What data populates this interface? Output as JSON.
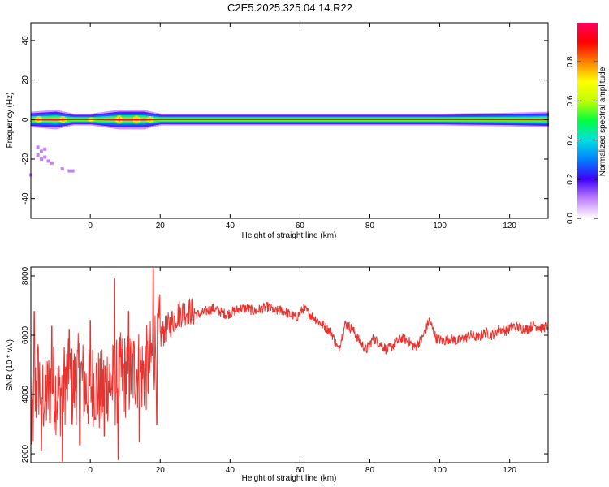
{
  "page": {
    "title": "C2E5.2025.325.04.14.R22"
  },
  "chart_data": [
    {
      "type": "heatmap",
      "xlabel": "Height of straight line (km)",
      "ylabel": "Frequency (Hz)",
      "xlim": [
        -17,
        131
      ],
      "ylim": [
        -50,
        49
      ],
      "x_ticks": [
        "0",
        "20",
        "40",
        "60",
        "80",
        "100",
        "120"
      ],
      "y_ticks": [
        "-40",
        "-20",
        "0",
        "20",
        "40"
      ],
      "x_tick_values": [
        0,
        20,
        40,
        60,
        80,
        100,
        120
      ],
      "y_tick_values": [
        -40,
        -20,
        0,
        20,
        40
      ],
      "grid": false,
      "band_center_hz": 0,
      "band_halfwidth_hz": [
        [
          -17,
          4
        ],
        [
          -10,
          5
        ],
        [
          -5,
          3
        ],
        [
          0,
          3
        ],
        [
          8,
          5
        ],
        [
          15,
          5
        ],
        [
          20,
          3
        ],
        [
          40,
          3
        ],
        [
          60,
          3
        ],
        [
          80,
          3
        ],
        [
          100,
          3
        ],
        [
          120,
          3.5
        ],
        [
          131,
          4
        ]
      ],
      "peaks": [
        {
          "x": -15,
          "value": 0.55
        },
        {
          "x": -8,
          "value": 0.6
        },
        {
          "x": 0,
          "value": 0.45
        },
        {
          "x": 8,
          "value": 0.6
        },
        {
          "x": 13,
          "value": 0.55
        },
        {
          "x": 17,
          "value": 0.5
        }
      ],
      "scatter_points": [
        [
          -15,
          -14
        ],
        [
          -14,
          -16
        ],
        [
          -13,
          -15
        ],
        [
          -15,
          -18
        ],
        [
          -14,
          -20
        ],
        [
          -13,
          -19
        ],
        [
          -12,
          -21
        ],
        [
          -11,
          -22
        ],
        [
          -8,
          -25
        ],
        [
          -6,
          -26
        ],
        [
          -5,
          -26
        ],
        [
          -17,
          -28
        ]
      ]
    },
    {
      "type": "colorbar",
      "label": "Normalized spectral amplitude",
      "range": [
        0,
        1
      ],
      "ticks": [
        "0.0",
        "0.2",
        "0.4",
        "0.6",
        "0.8"
      ],
      "tick_values": [
        0.0,
        0.2,
        0.4,
        0.6,
        0.8
      ],
      "colors": [
        "#ffffff",
        "#c080ff",
        "#4000ff",
        "#0080ff",
        "#00e0e0",
        "#00ff40",
        "#c0ff00",
        "#ffff00",
        "#ff8000",
        "#ff0000",
        "#ff0060"
      ]
    },
    {
      "type": "line",
      "xlabel": "Height of straight line (km)",
      "ylabel": "SNR (10 * v/v)",
      "xlim": [
        -17,
        131
      ],
      "ylim": [
        1700,
        8300
      ],
      "x_ticks": [
        "0",
        "20",
        "40",
        "60",
        "80",
        "100",
        "120"
      ],
      "y_ticks": [
        "2000",
        "4000",
        "6000",
        "8000"
      ],
      "x_tick_values": [
        0,
        20,
        40,
        60,
        80,
        100,
        120
      ],
      "y_tick_values": [
        2000,
        4000,
        6000,
        8000
      ],
      "grid": false,
      "color": "#e8332f",
      "envelope": [
        [
          -17,
          2800
        ],
        [
          -15,
          4600
        ],
        [
          -13,
          3800
        ],
        [
          -11,
          4400
        ],
        [
          -9,
          3900
        ],
        [
          -7,
          4500
        ],
        [
          -5,
          4200
        ],
        [
          -3,
          4700
        ],
        [
          -1,
          4100
        ],
        [
          1,
          4400
        ],
        [
          3,
          4000
        ],
        [
          5,
          4500
        ],
        [
          7,
          4300
        ],
        [
          9,
          4700
        ],
        [
          11,
          4600
        ],
        [
          13,
          4900
        ],
        [
          15,
          4700
        ],
        [
          17,
          5000
        ],
        [
          19,
          5800
        ],
        [
          21,
          6100
        ],
        [
          23,
          6400
        ],
        [
          25,
          6700
        ],
        [
          27,
          6800
        ],
        [
          29,
          6800
        ],
        [
          31,
          6700
        ],
        [
          33,
          6800
        ],
        [
          35,
          6900
        ],
        [
          37,
          6800
        ],
        [
          39,
          6700
        ],
        [
          41,
          6800
        ],
        [
          43,
          6900
        ],
        [
          45,
          6900
        ],
        [
          47,
          6800
        ],
        [
          49,
          6900
        ],
        [
          51,
          6950
        ],
        [
          53,
          6800
        ],
        [
          55,
          6850
        ],
        [
          57,
          6700
        ],
        [
          59,
          6600
        ],
        [
          61,
          6900
        ],
        [
          63,
          6700
        ],
        [
          65,
          6500
        ],
        [
          67,
          6300
        ],
        [
          69,
          6100
        ],
        [
          71,
          5500
        ],
        [
          73,
          6400
        ],
        [
          75,
          6200
        ],
        [
          77,
          5800
        ],
        [
          79,
          5500
        ],
        [
          81,
          5900
        ],
        [
          83,
          5700
        ],
        [
          85,
          5500
        ],
        [
          87,
          5700
        ],
        [
          89,
          5900
        ],
        [
          91,
          5800
        ],
        [
          93,
          5600
        ],
        [
          95,
          5900
        ],
        [
          97,
          6500
        ],
        [
          99,
          5900
        ],
        [
          101,
          5800
        ],
        [
          103,
          5900
        ],
        [
          105,
          5800
        ],
        [
          107,
          5900
        ],
        [
          109,
          6000
        ],
        [
          111,
          5900
        ],
        [
          113,
          6100
        ],
        [
          115,
          6000
        ],
        [
          117,
          6200
        ],
        [
          119,
          6150
        ],
        [
          121,
          6300
        ],
        [
          123,
          6250
        ],
        [
          125,
          6200
        ],
        [
          127,
          6350
        ],
        [
          129,
          6250
        ],
        [
          131,
          6300
        ]
      ],
      "spikes": [
        [
          -16,
          6800
        ],
        [
          -14,
          2100
        ],
        [
          -11,
          6300
        ],
        [
          -8,
          1750
        ],
        [
          -6,
          6200
        ],
        [
          -3,
          2300
        ],
        [
          0,
          6500
        ],
        [
          4,
          2600
        ],
        [
          7,
          7900
        ],
        [
          8,
          1800
        ],
        [
          11,
          6800
        ],
        [
          14,
          2400
        ],
        [
          18,
          8250
        ],
        [
          19,
          3000
        ]
      ]
    }
  ]
}
